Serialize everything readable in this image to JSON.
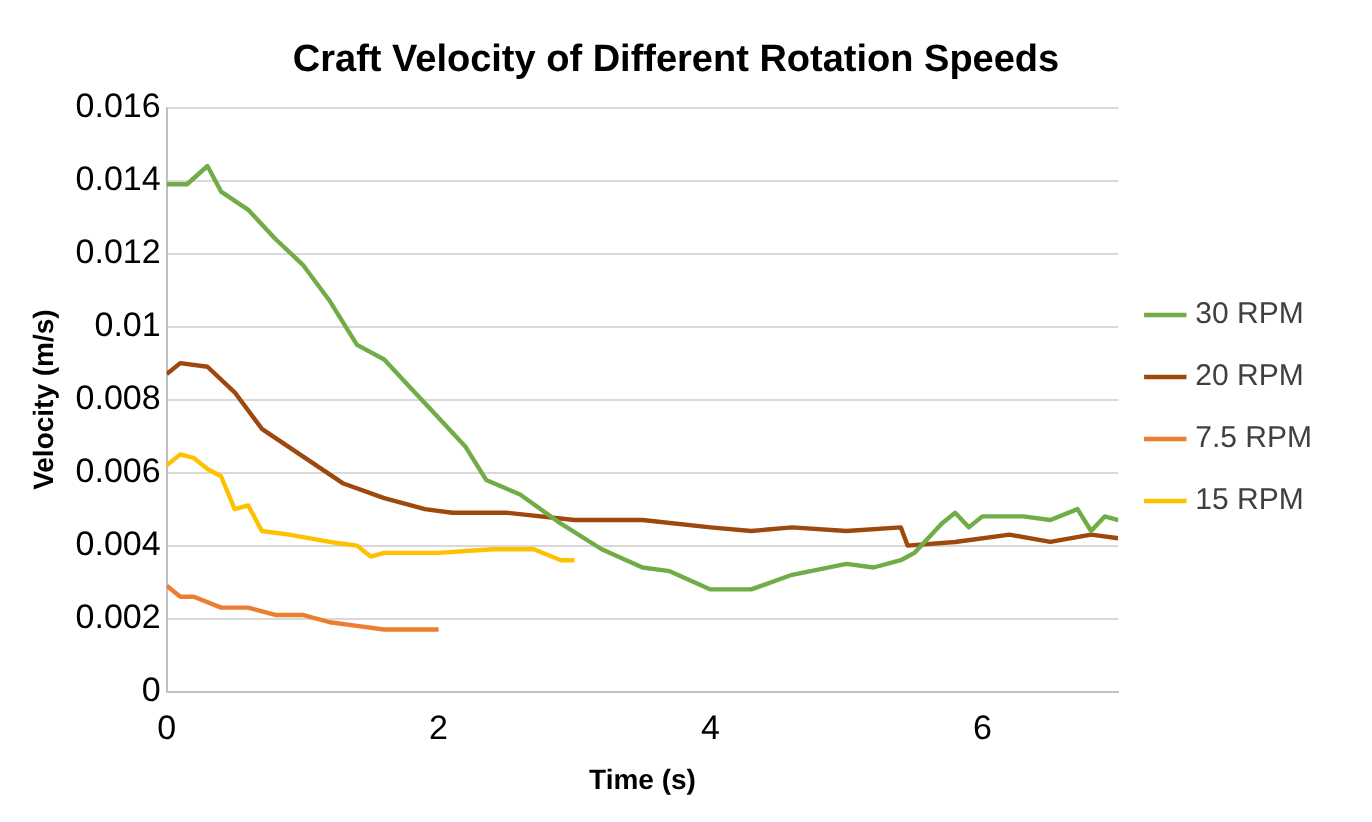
{
  "chart_data": {
    "type": "line",
    "title": "Craft Velocity of Different Rotation Speeds",
    "xlabel": "Time (s)",
    "ylabel": "Velocity (m/s)",
    "xlim": [
      0,
      7
    ],
    "xticks": [
      0,
      2,
      4,
      6
    ],
    "ylim": [
      0,
      0.016
    ],
    "yticks": [
      0,
      0.002,
      0.004,
      0.006,
      0.008,
      0.01,
      0.012,
      0.014,
      0.016
    ],
    "grid": "y",
    "legend": "right",
    "marker": "none",
    "series": [
      {
        "name": "30 RPM",
        "color": "#70ad47",
        "x": [
          0,
          0.15,
          0.3,
          0.4,
          0.6,
          0.8,
          1.0,
          1.2,
          1.4,
          1.6,
          1.8,
          2.0,
          2.2,
          2.35,
          2.6,
          2.9,
          3.2,
          3.5,
          3.7,
          4.0,
          4.3,
          4.6,
          5.0,
          5.2,
          5.4,
          5.5,
          5.7,
          5.8,
          5.9,
          6.0,
          6.3,
          6.5,
          6.7,
          6.8,
          6.9,
          7.0
        ],
        "values": [
          0.0139,
          0.0139,
          0.0144,
          0.0137,
          0.0132,
          0.0124,
          0.0117,
          0.0107,
          0.0095,
          0.0091,
          0.0083,
          0.0075,
          0.0067,
          0.0058,
          0.0054,
          0.0046,
          0.0039,
          0.0034,
          0.0033,
          0.0028,
          0.0028,
          0.0032,
          0.0035,
          0.0034,
          0.0036,
          0.0038,
          0.0046,
          0.0049,
          0.0045,
          0.0048,
          0.0048,
          0.0047,
          0.005,
          0.0044,
          0.0048,
          0.0047
        ]
      },
      {
        "name": "20 RPM",
        "color": "#9e480e",
        "x": [
          0,
          0.1,
          0.3,
          0.5,
          0.7,
          0.9,
          1.1,
          1.3,
          1.6,
          1.9,
          2.1,
          2.5,
          3.0,
          3.5,
          4.0,
          4.3,
          4.6,
          5.0,
          5.4,
          5.45,
          5.8,
          6.2,
          6.5,
          6.8,
          7.0
        ],
        "values": [
          0.0087,
          0.009,
          0.0089,
          0.0082,
          0.0072,
          0.0067,
          0.0062,
          0.0057,
          0.0053,
          0.005,
          0.0049,
          0.0049,
          0.0047,
          0.0047,
          0.0045,
          0.0044,
          0.0045,
          0.0044,
          0.0045,
          0.004,
          0.0041,
          0.0043,
          0.0041,
          0.0043,
          0.0042
        ]
      },
      {
        "name": "7.5 RPM",
        "color": "#ed7d31",
        "x": [
          0,
          0.1,
          0.2,
          0.4,
          0.6,
          0.8,
          1.0,
          1.2,
          1.4,
          1.6,
          2.0
        ],
        "values": [
          0.0029,
          0.0026,
          0.0026,
          0.0023,
          0.0023,
          0.0021,
          0.0021,
          0.0019,
          0.0018,
          0.0017,
          0.0017
        ]
      },
      {
        "name": "15 RPM",
        "color": "#ffc000",
        "x": [
          0,
          0.1,
          0.2,
          0.3,
          0.4,
          0.5,
          0.6,
          0.7,
          0.9,
          1.2,
          1.4,
          1.5,
          1.6,
          2.0,
          2.4,
          2.7,
          2.9,
          3.0
        ],
        "values": [
          0.0062,
          0.0065,
          0.0064,
          0.0061,
          0.0059,
          0.005,
          0.0051,
          0.0044,
          0.0043,
          0.0041,
          0.004,
          0.0037,
          0.0038,
          0.0038,
          0.0039,
          0.0039,
          0.0036,
          0.0036
        ]
      }
    ]
  }
}
